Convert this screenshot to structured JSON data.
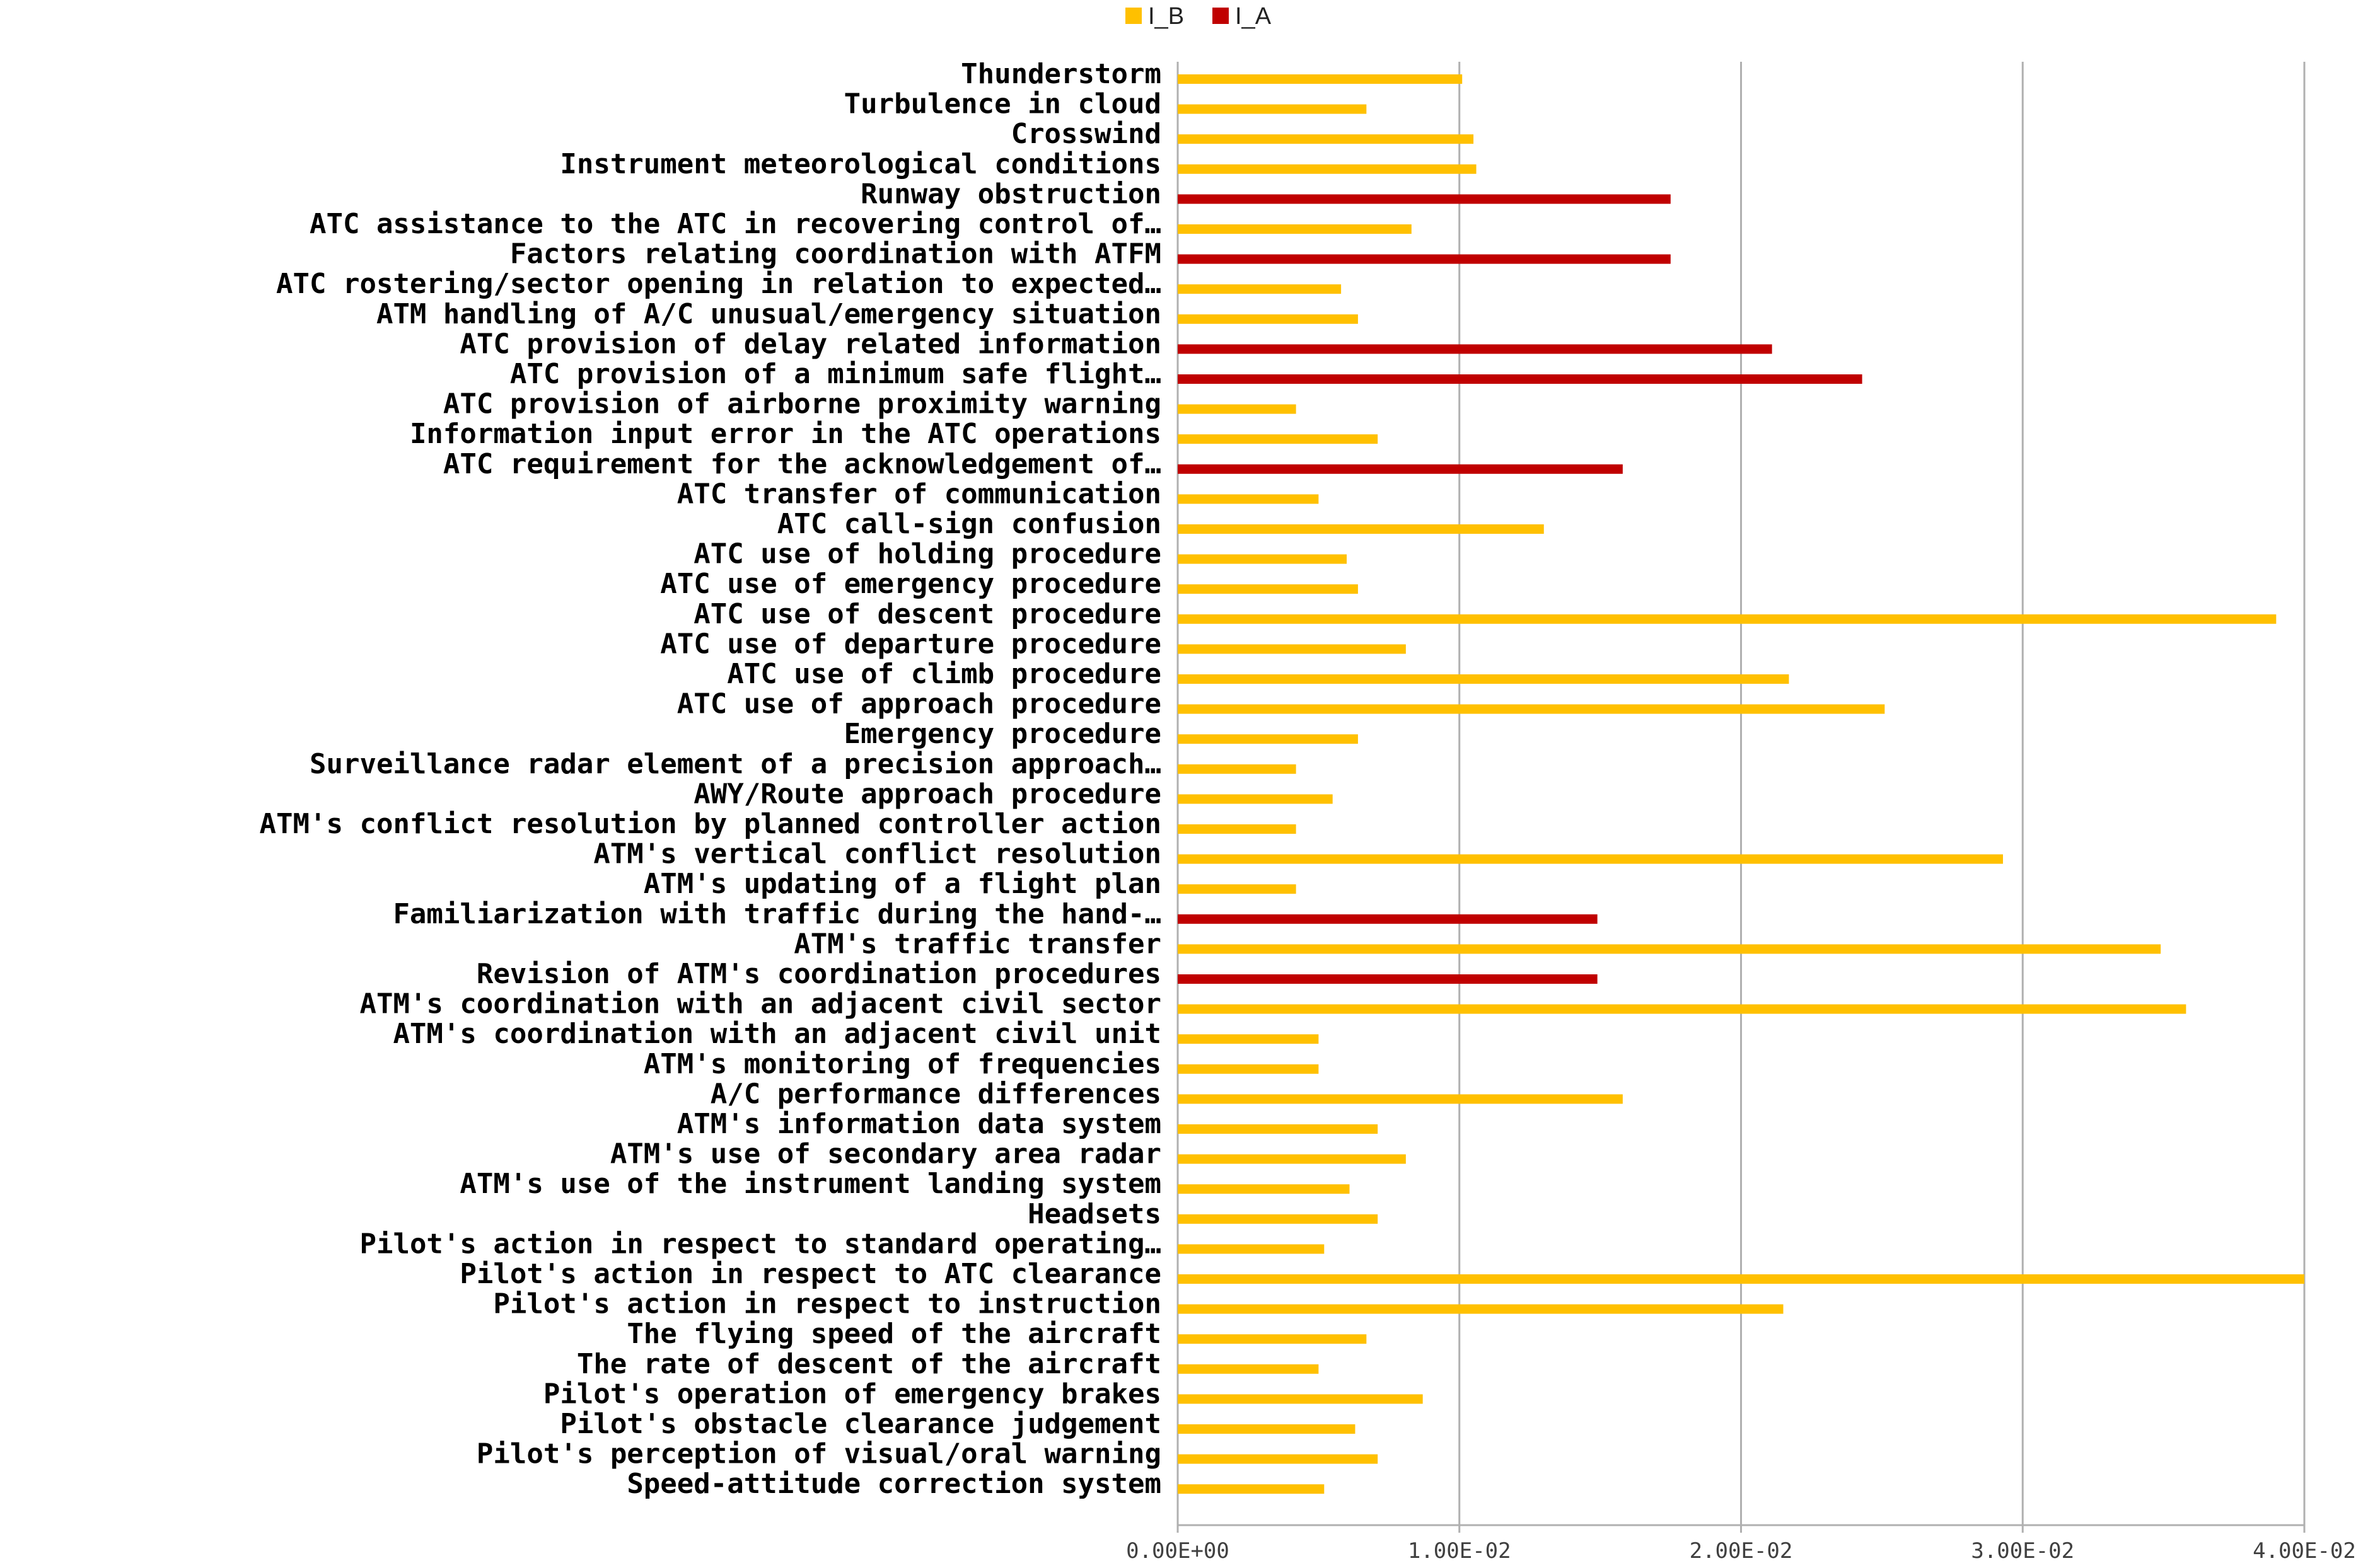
{
  "chart_data": {
    "type": "bar",
    "orientation": "horizontal",
    "legend": {
      "placement": "top-center",
      "entries": [
        {
          "name": "I_B",
          "color": "#FFC000"
        },
        {
          "name": "I_A",
          "color": "#C00000"
        }
      ]
    },
    "xlim": [
      0,
      0.04
    ],
    "xticks": [
      0,
      0.01,
      0.02,
      0.03,
      0.04
    ],
    "xtick_labels": [
      "0.00E+00",
      "1.00E-02",
      "2.00E-02",
      "3.00E-02",
      "4.00E-02"
    ],
    "grid": "vertical",
    "bars": [
      {
        "label": "Thunderstorm",
        "series": "I_B",
        "value": 0.0101
      },
      {
        "label": "Turbulence in cloud",
        "series": "I_B",
        "value": 0.0067
      },
      {
        "label": "Crosswind",
        "series": "I_B",
        "value": 0.0105
      },
      {
        "label": "Instrument meteorological conditions",
        "series": "I_B",
        "value": 0.0106
      },
      {
        "label": "Runway obstruction",
        "series": "I_A",
        "value": 0.0175
      },
      {
        "label": "ATC assistance to the ATC in recovering control of…",
        "series": "I_B",
        "value": 0.0083
      },
      {
        "label": "Factors relating coordination with ATFM",
        "series": "I_A",
        "value": 0.0175
      },
      {
        "label": "ATC rostering/sector opening in relation to expected…",
        "series": "I_B",
        "value": 0.0058
      },
      {
        "label": "ATM handling of A/C unusual/emergency situation",
        "series": "I_B",
        "value": 0.0064
      },
      {
        "label": "ATC provision of delay related information",
        "series": "I_A",
        "value": 0.0211
      },
      {
        "label": "ATC provision of a minimum safe flight…",
        "series": "I_A",
        "value": 0.0243
      },
      {
        "label": "ATC provision of airborne proximity warning",
        "series": "I_B",
        "value": 0.0042
      },
      {
        "label": "Information input error in the ATC operations",
        "series": "I_B",
        "value": 0.0071
      },
      {
        "label": "ATC requirement for the acknowledgement of…",
        "series": "I_A",
        "value": 0.0158
      },
      {
        "label": "ATC transfer of communication",
        "series": "I_B",
        "value": 0.005
      },
      {
        "label": "ATC call-sign confusion",
        "series": "I_B",
        "value": 0.013
      },
      {
        "label": "ATC use of holding procedure",
        "series": "I_B",
        "value": 0.006
      },
      {
        "label": "ATC use of emergency procedure",
        "series": "I_B",
        "value": 0.0064
      },
      {
        "label": "ATC use of descent procedure",
        "series": "I_B",
        "value": 0.039
      },
      {
        "label": "ATC use of departure procedure",
        "series": "I_B",
        "value": 0.0081
      },
      {
        "label": "ATC use of climb procedure",
        "series": "I_B",
        "value": 0.0217
      },
      {
        "label": "ATC use of approach procedure",
        "series": "I_B",
        "value": 0.0251
      },
      {
        "label": "Emergency procedure",
        "series": "I_B",
        "value": 0.0064
      },
      {
        "label": "Surveillance radar element of a precision approach…",
        "series": "I_B",
        "value": 0.0042
      },
      {
        "label": "AWY/Route approach procedure",
        "series": "I_B",
        "value": 0.0055
      },
      {
        "label": "ATM's conflict resolution by planned controller action",
        "series": "I_B",
        "value": 0.0042
      },
      {
        "label": "ATM's vertical conflict resolution",
        "series": "I_B",
        "value": 0.0293
      },
      {
        "label": "ATM's updating of a flight plan",
        "series": "I_B",
        "value": 0.0042
      },
      {
        "label": "Familiarization with traffic during the hand-…",
        "series": "I_A",
        "value": 0.0149
      },
      {
        "label": "ATM's traffic transfer",
        "series": "I_B",
        "value": 0.0349
      },
      {
        "label": "Revision of ATM's coordination procedures",
        "series": "I_A",
        "value": 0.0149
      },
      {
        "label": "ATM's coordination with an adjacent civil sector",
        "series": "I_B",
        "value": 0.0358
      },
      {
        "label": "ATM's coordination with an adjacent civil unit",
        "series": "I_B",
        "value": 0.005
      },
      {
        "label": "ATM's monitoring of frequencies",
        "series": "I_B",
        "value": 0.005
      },
      {
        "label": "A/C performance differences",
        "series": "I_B",
        "value": 0.0158
      },
      {
        "label": "ATM's information data system",
        "series": "I_B",
        "value": 0.0071
      },
      {
        "label": "ATM's use of secondary area radar",
        "series": "I_B",
        "value": 0.0081
      },
      {
        "label": "ATM's use of the instrument landing system",
        "series": "I_B",
        "value": 0.0061
      },
      {
        "label": "Headsets",
        "series": "I_B",
        "value": 0.0071
      },
      {
        "label": "Pilot's action in respect to standard operating…",
        "series": "I_B",
        "value": 0.0052
      },
      {
        "label": "Pilot's action in respect to ATC clearance",
        "series": "I_B",
        "value": 0.04
      },
      {
        "label": "Pilot's action in respect to instruction",
        "series": "I_B",
        "value": 0.0215
      },
      {
        "label": "The flying speed of the aircraft",
        "series": "I_B",
        "value": 0.0067
      },
      {
        "label": "The rate of descent of the aircraft",
        "series": "I_B",
        "value": 0.005
      },
      {
        "label": "Pilot's operation of emergency brakes",
        "series": "I_B",
        "value": 0.0087
      },
      {
        "label": "Pilot's obstacle clearance judgement",
        "series": "I_B",
        "value": 0.0063
      },
      {
        "label": "Pilot's perception of visual/oral warning",
        "series": "I_B",
        "value": 0.0071
      },
      {
        "label": "Speed-attitude correction system",
        "series": "I_B",
        "value": 0.0052
      }
    ]
  }
}
